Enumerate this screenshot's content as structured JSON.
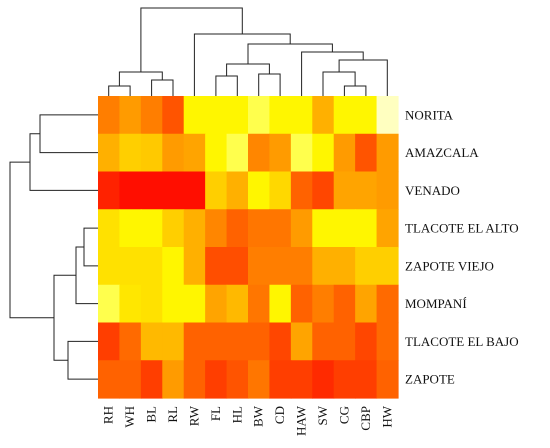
{
  "chart_data": {
    "type": "heatmap",
    "title": "",
    "xlabel": "",
    "ylabel": "",
    "columns": [
      "RH",
      "WH",
      "BL",
      "RL",
      "RW",
      "FL",
      "HL",
      "BW",
      "CD",
      "HAW",
      "SW",
      "CG",
      "CBP",
      "HW"
    ],
    "rows": [
      "NORITA",
      "AMAZCALA",
      "VENADO",
      "TLACOTE EL ALTO",
      "ZAPOTE VIEJO",
      "MOMPANÍ",
      "TLACOTE EL BAJO",
      "ZAPOTE"
    ],
    "color_scale": {
      "low": "#ff0000",
      "mid": "#ff8c00",
      "high": "#ffff00",
      "max": "#ffffe6"
    },
    "values": [
      [
        0.45,
        0.55,
        0.45,
        0.3,
        0.85,
        0.85,
        0.85,
        0.92,
        0.85,
        0.85,
        0.62,
        0.85,
        0.85,
        0.98
      ],
      [
        0.62,
        0.72,
        0.7,
        0.55,
        0.58,
        0.85,
        0.92,
        0.48,
        0.55,
        0.92,
        0.85,
        0.55,
        0.3,
        0.55
      ],
      [
        0.12,
        0.05,
        0.05,
        0.05,
        0.05,
        0.72,
        0.62,
        0.85,
        0.75,
        0.35,
        0.25,
        0.58,
        0.58,
        0.55
      ],
      [
        0.78,
        0.85,
        0.85,
        0.72,
        0.62,
        0.48,
        0.35,
        0.42,
        0.42,
        0.55,
        0.85,
        0.85,
        0.85,
        0.58
      ],
      [
        0.78,
        0.78,
        0.78,
        0.85,
        0.62,
        0.28,
        0.28,
        0.45,
        0.45,
        0.45,
        0.62,
        0.62,
        0.72,
        0.72
      ],
      [
        0.92,
        0.8,
        0.78,
        0.85,
        0.85,
        0.58,
        0.65,
        0.42,
        0.85,
        0.35,
        0.45,
        0.35,
        0.58,
        0.38
      ],
      [
        0.22,
        0.38,
        0.65,
        0.65,
        0.35,
        0.35,
        0.35,
        0.35,
        0.25,
        0.58,
        0.35,
        0.35,
        0.25,
        0.38
      ],
      [
        0.35,
        0.35,
        0.22,
        0.55,
        0.35,
        0.22,
        0.3,
        0.42,
        0.22,
        0.22,
        0.15,
        0.22,
        0.22,
        0.35
      ]
    ],
    "row_dendrogram": true,
    "column_dendrogram": true,
    "legend": "none"
  }
}
